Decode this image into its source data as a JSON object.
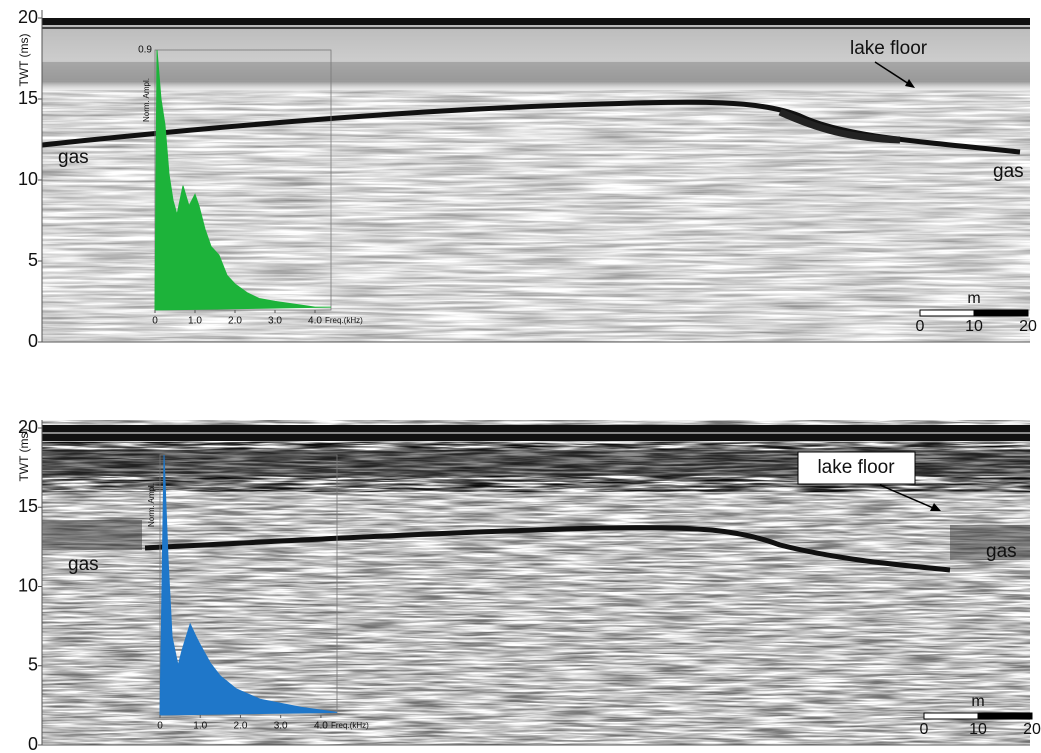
{
  "panels": [
    {
      "y_axis_label": "TWT (ms)",
      "ylim": [
        0,
        20
      ],
      "yticks": [
        0,
        5,
        10,
        15,
        20
      ],
      "annotations": [
        "lake floor",
        "gas",
        "gas"
      ],
      "scale_bar": {
        "unit": "m",
        "ticks": [
          0,
          10,
          20
        ]
      },
      "spectrum": {
        "type": "area",
        "color": "#1db33a",
        "y_axis_label": "Norm. Ampl.",
        "x_axis_label": "Freq.(kHz)",
        "xlim": [
          0,
          4.4
        ],
        "ylim": [
          0,
          0.9
        ],
        "yticks": [
          0.9
        ],
        "xticks": [
          0,
          {
            "value": 1,
            "label": "1.0"
          },
          {
            "value": 2,
            "label": "2.0"
          },
          {
            "value": 3,
            "label": "3.0"
          },
          {
            "value": 4,
            "label": "4.0"
          }
        ],
        "x": [
          0,
          0.05,
          0.15,
          0.25,
          0.35,
          0.45,
          0.55,
          0.7,
          0.85,
          1.0,
          1.1,
          1.25,
          1.4,
          1.6,
          1.8,
          2.0,
          2.3,
          2.6,
          3.0,
          3.5,
          4.0,
          4.4
        ],
        "values": [
          0,
          0.9,
          0.73,
          0.64,
          0.47,
          0.38,
          0.33,
          0.43,
          0.36,
          0.4,
          0.36,
          0.28,
          0.22,
          0.19,
          0.12,
          0.09,
          0.06,
          0.04,
          0.03,
          0.02,
          0.01,
          0.01
        ]
      }
    },
    {
      "y_axis_label": "TWT (ms)",
      "ylim": [
        0,
        20
      ],
      "yticks": [
        0,
        5,
        10,
        15,
        20
      ],
      "annotations": [
        "lake floor",
        "gas",
        "gas"
      ],
      "scale_bar": {
        "unit": "m",
        "ticks": [
          0,
          10,
          20
        ]
      },
      "spectrum": {
        "type": "area",
        "color": "#1f77c9",
        "y_axis_label": "Norm. Ampl.",
        "x_axis_label": "Freq.(kHz)",
        "xlim": [
          0,
          4.4
        ],
        "ylim": [
          0,
          1
        ],
        "xticks": [
          0,
          {
            "value": 1,
            "label": "1.0"
          },
          {
            "value": 2,
            "label": "2.0"
          },
          {
            "value": 3,
            "label": "3.0"
          },
          {
            "value": 4,
            "label": "4.0"
          }
        ],
        "x": [
          0,
          0.1,
          0.2,
          0.3,
          0.45,
          0.55,
          0.75,
          0.9,
          1.0,
          1.25,
          1.5,
          1.9,
          2.5,
          3.5,
          4.4
        ],
        "values": [
          0,
          1.0,
          0.6,
          0.3,
          0.19,
          0.25,
          0.35,
          0.3,
          0.27,
          0.2,
          0.15,
          0.1,
          0.06,
          0.03,
          0.01
        ]
      }
    }
  ]
}
